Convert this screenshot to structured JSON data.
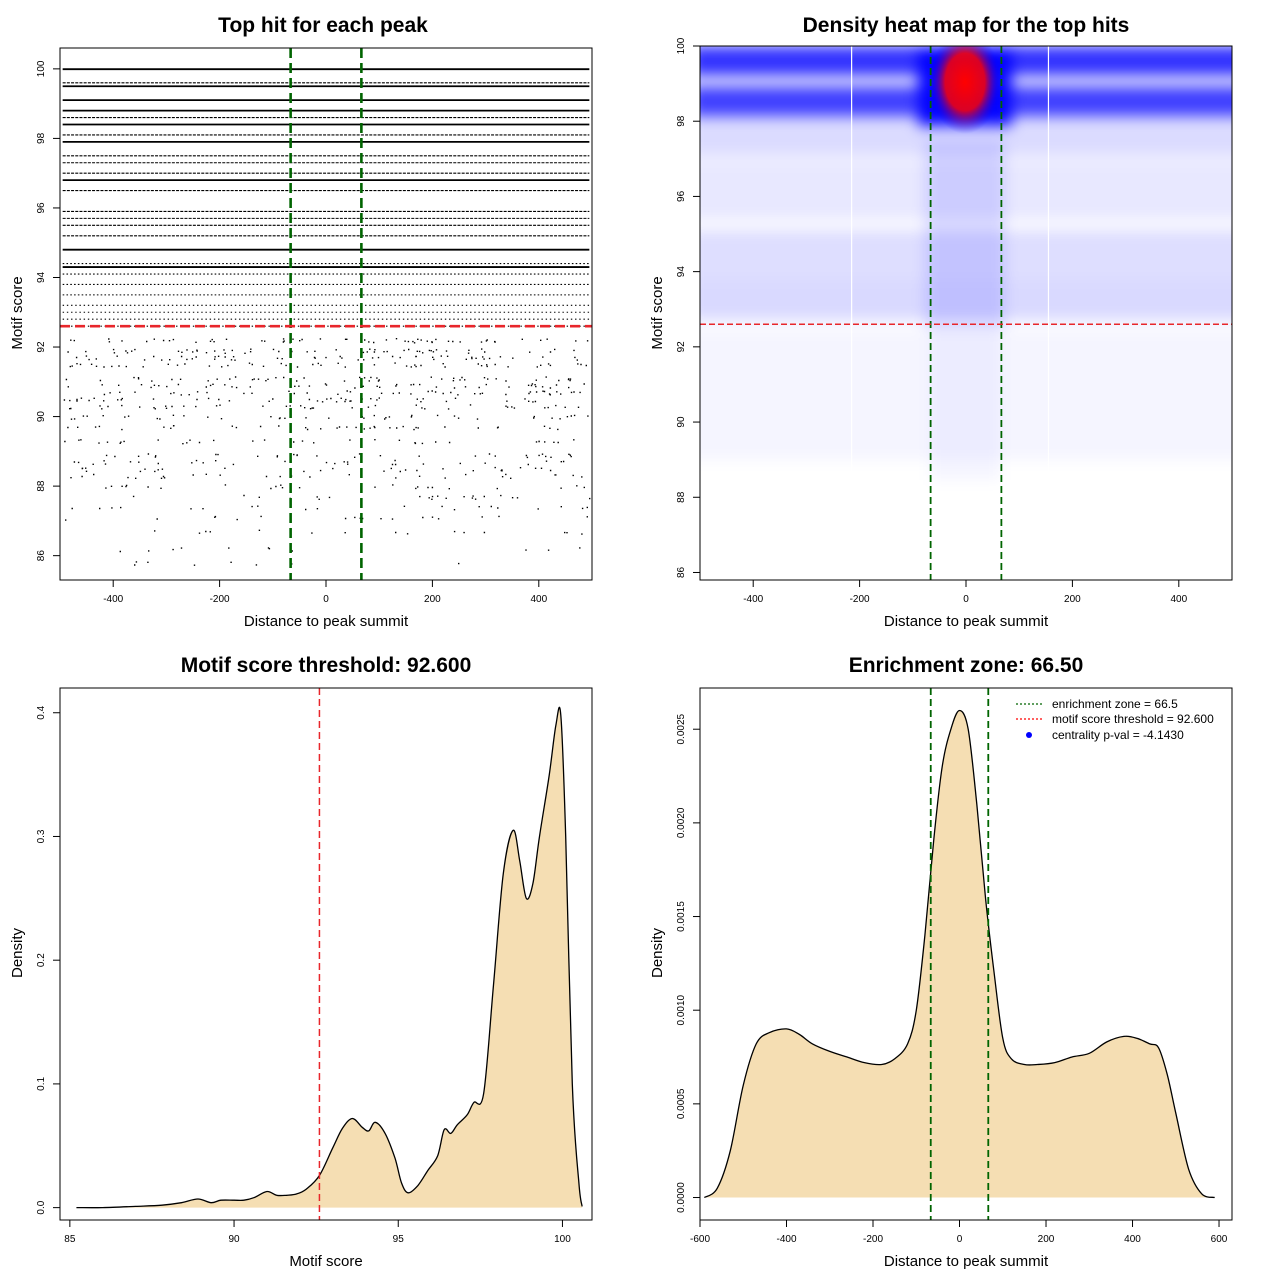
{
  "chart_data": [
    {
      "id": "top_hits",
      "type": "scatter",
      "title": "Top hit for each peak",
      "xlabel": "Distance to peak summit",
      "ylabel": "Motif score",
      "xlim": [
        -500,
        500
      ],
      "ylim": [
        85.3,
        100.6
      ],
      "xticks": [
        -400,
        -200,
        0,
        200,
        400
      ],
      "yticks": [
        86,
        88,
        90,
        92,
        94,
        96,
        98,
        100
      ],
      "enrichment_zone": 66.5,
      "score_threshold": 92.6,
      "dense_score_rows": [
        99.99,
        99.6,
        99.5,
        99.1,
        98.8,
        98.6,
        98.4,
        98.1,
        97.9,
        97.5,
        97.3,
        97.0,
        96.8,
        96.5,
        95.9,
        95.7,
        95.5,
        95.2,
        94.8,
        94.4,
        94.3,
        94.1,
        93.8,
        93.5,
        93.2,
        93.0,
        92.8,
        92.6
      ],
      "sparse_score_rows": [
        92.2,
        91.9,
        91.7,
        91.5,
        91.1,
        90.9,
        90.7,
        90.5,
        90.3,
        90.0,
        89.7,
        89.3,
        88.9,
        88.7,
        88.5,
        88.3,
        88.0,
        87.7,
        87.4,
        87.1,
        86.7,
        86.2,
        85.8
      ]
    },
    {
      "id": "heatmap",
      "type": "heatmap",
      "title": "Density heat map for the top hits",
      "xlabel": "Distance to peak summit",
      "ylabel": "Motif score",
      "xlim": [
        -500,
        500
      ],
      "ylim": [
        85.8,
        100.0
      ],
      "xticks": [
        -400,
        -200,
        0,
        200,
        400
      ],
      "yticks": [
        86,
        88,
        90,
        92,
        94,
        96,
        98,
        100
      ],
      "enrichment_zone": 66.5,
      "score_threshold": 92.6,
      "grid_x": [
        -215,
        155
      ],
      "colors": [
        "#ffffff",
        "#0000ff",
        "#ff0000"
      ]
    },
    {
      "id": "score_density",
      "type": "area",
      "title": "Motif score threshold: 92.600",
      "xlabel": "Motif score",
      "ylabel": "Density",
      "xlim": [
        84.7,
        100.9
      ],
      "ylim": [
        -0.01,
        0.42
      ],
      "xticks": [
        85,
        90,
        95,
        100
      ],
      "yticks": [
        0.0,
        0.1,
        0.2,
        0.3,
        0.4
      ],
      "ytick_labels": [
        "0.0",
        "0.1",
        "0.2",
        "0.3",
        "0.4"
      ],
      "threshold": 92.6,
      "x": [
        85.2,
        86.0,
        87.0,
        87.8,
        88.4,
        88.9,
        89.3,
        89.6,
        90.0,
        90.3,
        90.6,
        91.0,
        91.3,
        91.6,
        91.9,
        92.2,
        92.6,
        93.0,
        93.3,
        93.6,
        93.9,
        94.1,
        94.3,
        94.6,
        94.9,
        95.1,
        95.3,
        95.6,
        95.9,
        96.2,
        96.4,
        96.6,
        96.8,
        97.1,
        97.3,
        97.6,
        97.9,
        98.2,
        98.5,
        98.7,
        98.9,
        99.1,
        99.3,
        99.6,
        99.8,
        99.95,
        100.1,
        100.3,
        100.5,
        100.6
      ],
      "y": [
        0.0,
        0.0,
        0.001,
        0.002,
        0.004,
        0.007,
        0.004,
        0.006,
        0.006,
        0.006,
        0.008,
        0.013,
        0.01,
        0.01,
        0.011,
        0.015,
        0.026,
        0.048,
        0.064,
        0.072,
        0.065,
        0.062,
        0.069,
        0.06,
        0.04,
        0.02,
        0.012,
        0.018,
        0.03,
        0.042,
        0.063,
        0.06,
        0.067,
        0.075,
        0.085,
        0.092,
        0.18,
        0.27,
        0.305,
        0.28,
        0.25,
        0.262,
        0.3,
        0.35,
        0.39,
        0.398,
        0.3,
        0.1,
        0.02,
        0.001
      ]
    },
    {
      "id": "distance_density",
      "type": "area",
      "title": "Enrichment zone: 66.50",
      "xlabel": "Distance to peak summit",
      "ylabel": "Density",
      "xlim": [
        -600,
        630
      ],
      "ylim": [
        -0.00012,
        0.00272
      ],
      "xticks": [
        -600,
        -400,
        -200,
        0,
        200,
        400,
        600
      ],
      "yticks": [
        0.0,
        0.0005,
        0.001,
        0.0015,
        0.002,
        0.0025
      ],
      "ytick_labels": [
        "0.0000",
        "0.0005",
        "0.0010",
        "0.0015",
        "0.0020",
        "0.0025"
      ],
      "enrichment_zone": 66.5,
      "x": [
        -590,
        -560,
        -530,
        -500,
        -470,
        -440,
        -400,
        -370,
        -340,
        -300,
        -260,
        -220,
        -180,
        -150,
        -120,
        -100,
        -80,
        -60,
        -40,
        -20,
        0,
        20,
        40,
        60,
        80,
        100,
        120,
        150,
        180,
        220,
        260,
        300,
        340,
        380,
        410,
        440,
        460,
        480,
        500,
        530,
        560,
        590
      ],
      "y": [
        0.0,
        5e-05,
        0.00025,
        0.0006,
        0.00082,
        0.00088,
        0.0009,
        0.00087,
        0.00082,
        0.00078,
        0.00075,
        0.00072,
        0.00071,
        0.00074,
        0.00082,
        0.001,
        0.0014,
        0.0019,
        0.0023,
        0.0025,
        0.0026,
        0.0025,
        0.0021,
        0.0016,
        0.0012,
        0.00085,
        0.00074,
        0.00071,
        0.00071,
        0.00072,
        0.00075,
        0.00077,
        0.00083,
        0.00086,
        0.00085,
        0.00082,
        0.0008,
        0.00066,
        0.00045,
        0.00015,
        2e-05,
        0.0
      ],
      "legend": [
        {
          "label": "enrichment zone = 66.5",
          "color": "#006400",
          "marker": "line"
        },
        {
          "label": "motif score threshold = 92.600",
          "color": "#ff0000",
          "marker": "line"
        },
        {
          "label": "centrality p-val = -4.1430",
          "color": "#0000ff",
          "marker": "dot"
        }
      ]
    }
  ]
}
